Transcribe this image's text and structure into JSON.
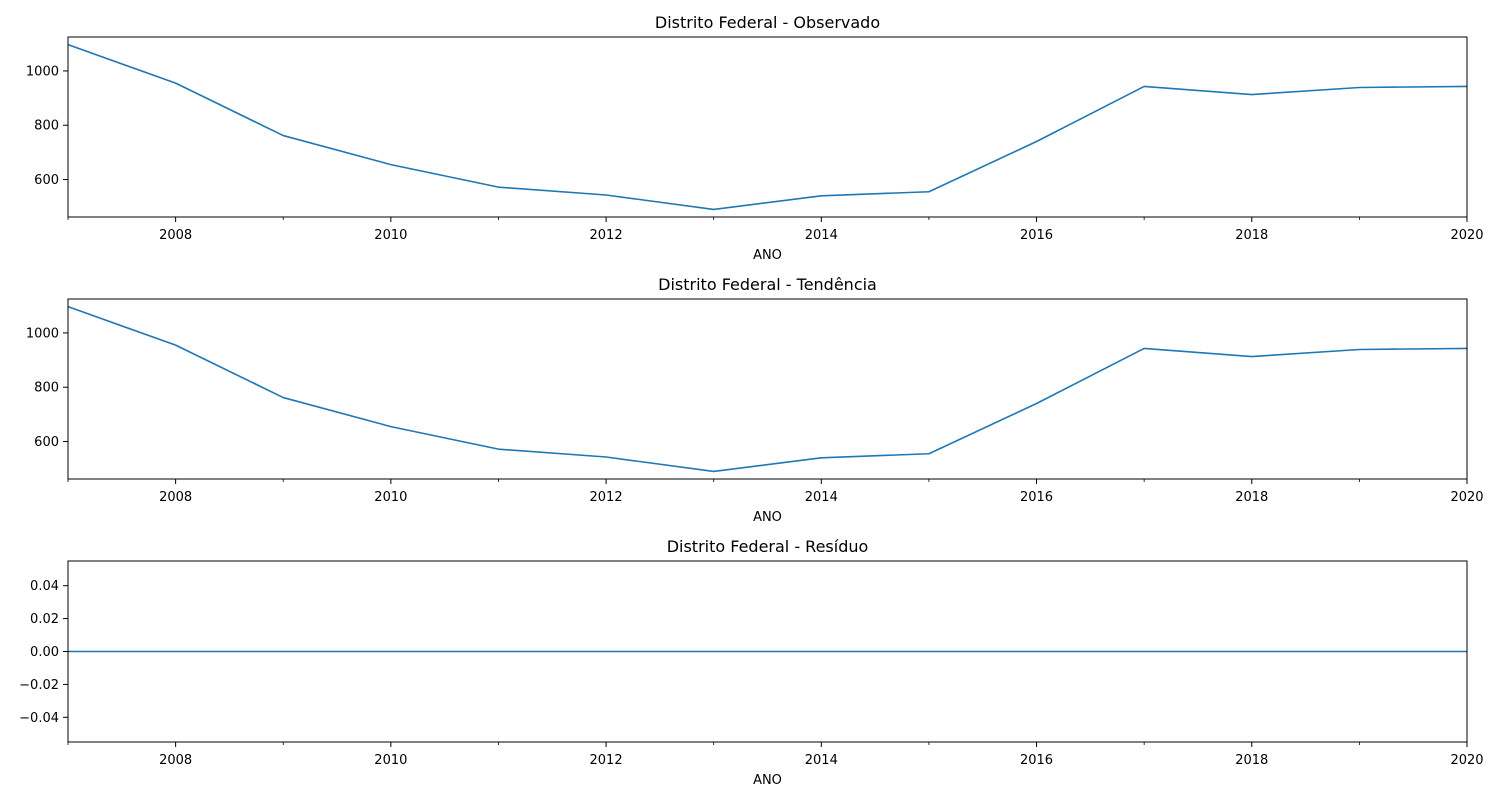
{
  "chart_data": [
    {
      "type": "line",
      "title": "Distrito Federal - Observado",
      "xlabel": "ANO",
      "ylabel": "",
      "xlim": [
        2007,
        2020
      ],
      "ylim": [
        462,
        1125
      ],
      "xticks_major": [
        2008,
        2010,
        2012,
        2014,
        2016,
        2018,
        2020
      ],
      "xticks_minor": [
        2007,
        2009,
        2011,
        2013,
        2015,
        2017,
        2019
      ],
      "yticks": [
        600,
        800,
        1000
      ],
      "grid": false,
      "color": "#1f77b4",
      "series": [
        {
          "x": [
            2007,
            2008,
            2009,
            2010,
            2011,
            2012,
            2013,
            2014,
            2015,
            2016,
            2017,
            2018,
            2019,
            2020
          ],
          "values": [
            1097,
            955,
            762,
            655,
            572,
            543,
            490,
            540,
            555,
            740,
            943,
            913,
            939,
            943
          ]
        }
      ]
    },
    {
      "type": "line",
      "title": "Distrito Federal - Tendência",
      "xlabel": "ANO",
      "ylabel": "",
      "xlim": [
        2007,
        2020
      ],
      "ylim": [
        462,
        1125
      ],
      "xticks_major": [
        2008,
        2010,
        2012,
        2014,
        2016,
        2018,
        2020
      ],
      "xticks_minor": [
        2007,
        2009,
        2011,
        2013,
        2015,
        2017,
        2019
      ],
      "yticks": [
        600,
        800,
        1000
      ],
      "grid": false,
      "color": "#1f77b4",
      "series": [
        {
          "x": [
            2007,
            2008,
            2009,
            2010,
            2011,
            2012,
            2013,
            2014,
            2015,
            2016,
            2017,
            2018,
            2019,
            2020
          ],
          "values": [
            1097,
            955,
            762,
            655,
            572,
            543,
            490,
            540,
            555,
            740,
            943,
            913,
            939,
            943
          ]
        }
      ]
    },
    {
      "type": "line",
      "title": "Distrito Federal - Resíduo",
      "xlabel": "ANO",
      "ylabel": "",
      "xlim": [
        2007,
        2020
      ],
      "ylim": [
        -0.055,
        0.055
      ],
      "xticks_major": [
        2008,
        2010,
        2012,
        2014,
        2016,
        2018,
        2020
      ],
      "xticks_minor": [
        2007,
        2009,
        2011,
        2013,
        2015,
        2017,
        2019
      ],
      "yticks": [
        -0.04,
        -0.02,
        0.0,
        0.02,
        0.04
      ],
      "ytick_labels": [
        "−0.04",
        "−0.02",
        "0.00",
        "0.02",
        "0.04"
      ],
      "grid": false,
      "color": "#1f77b4",
      "series": [
        {
          "x": [
            2007,
            2008,
            2009,
            2010,
            2011,
            2012,
            2013,
            2014,
            2015,
            2016,
            2017,
            2018,
            2019,
            2020
          ],
          "values": [
            0,
            0,
            0,
            0,
            0,
            0,
            0,
            0,
            0,
            0,
            0,
            0,
            0,
            0
          ]
        }
      ]
    }
  ]
}
